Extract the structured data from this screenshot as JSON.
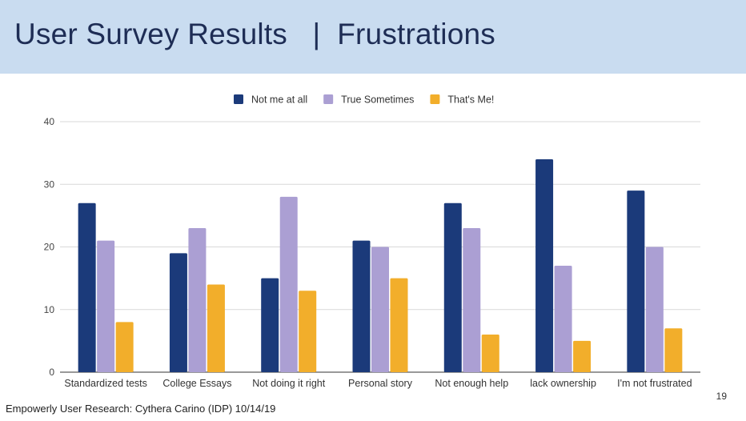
{
  "slide": {
    "title": "User Survey Results   |  Frustrations",
    "number": "19",
    "credit": "Empowerly User Research: Cythera Carino (IDP) 10/14/19"
  },
  "colors": {
    "header_bg": "#c9dcf0",
    "title_text": "#1e2d55",
    "series": [
      "#1b3a7a",
      "#ab9fd3",
      "#f2ae2b"
    ],
    "grid": "#d9d9d9"
  },
  "chart_data": {
    "type": "bar",
    "categories": [
      "Standardized tests",
      "College Essays",
      "Not doing it right",
      "Personal story",
      "Not enough help",
      "lack ownership",
      "I'm not frustrated"
    ],
    "series": [
      {
        "name": "Not me at all",
        "values": [
          27,
          19,
          15,
          21,
          27,
          34,
          29
        ]
      },
      {
        "name": "True Sometimes",
        "values": [
          21,
          23,
          28,
          20,
          23,
          17,
          20
        ]
      },
      {
        "name": "That's Me!",
        "values": [
          8,
          14,
          13,
          15,
          6,
          5,
          7
        ]
      }
    ],
    "yticks": [
      0,
      10,
      20,
      30,
      40
    ],
    "ylim": [
      0,
      40
    ],
    "grid": true,
    "legend_position": "top-center"
  }
}
